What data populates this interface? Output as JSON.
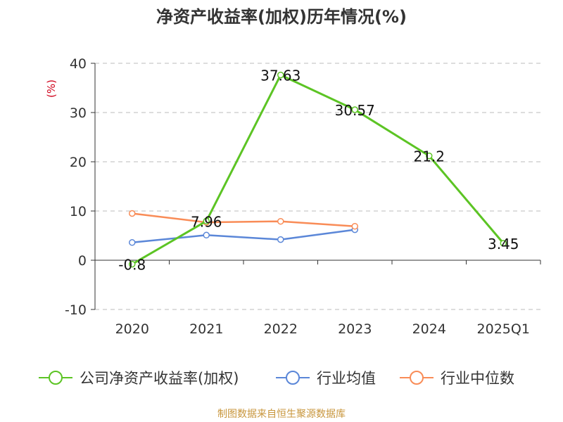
{
  "title": "净资产收益率(加权)历年情况(%)",
  "footer": "制图数据来自恒生聚源数据库",
  "colors": {
    "company": "#5cc424",
    "avg": "#5b87d8",
    "median": "#f98c57",
    "unit": "#d0021b",
    "axis": "#333333",
    "grid": "#bbbbbb"
  },
  "chart_data": {
    "type": "line",
    "ylabel": "(%)",
    "ylim": [
      -10,
      40
    ],
    "yticks": [
      "40",
      "30",
      "20",
      "10",
      "0",
      "-10"
    ],
    "categories": [
      "2020",
      "2021",
      "2022",
      "2023",
      "2024",
      "2025Q1"
    ],
    "grid": true,
    "legend_position": "bottom",
    "series": [
      {
        "name": "公司净资产收益率(加权)",
        "color": "#5cc424",
        "values": [
          -0.8,
          7.96,
          37.63,
          30.57,
          21.2,
          3.45
        ],
        "labels": [
          "-0.8",
          "7.96",
          "37.63",
          "30.57",
          "21.2",
          "3.45"
        ]
      },
      {
        "name": "行业均值",
        "color": "#5b87d8",
        "values": [
          3.6,
          5.1,
          4.2,
          6.2,
          null,
          null
        ]
      },
      {
        "name": "行业中位数",
        "color": "#f98c57",
        "values": [
          9.5,
          7.7,
          7.9,
          6.9,
          null,
          null
        ]
      }
    ]
  }
}
